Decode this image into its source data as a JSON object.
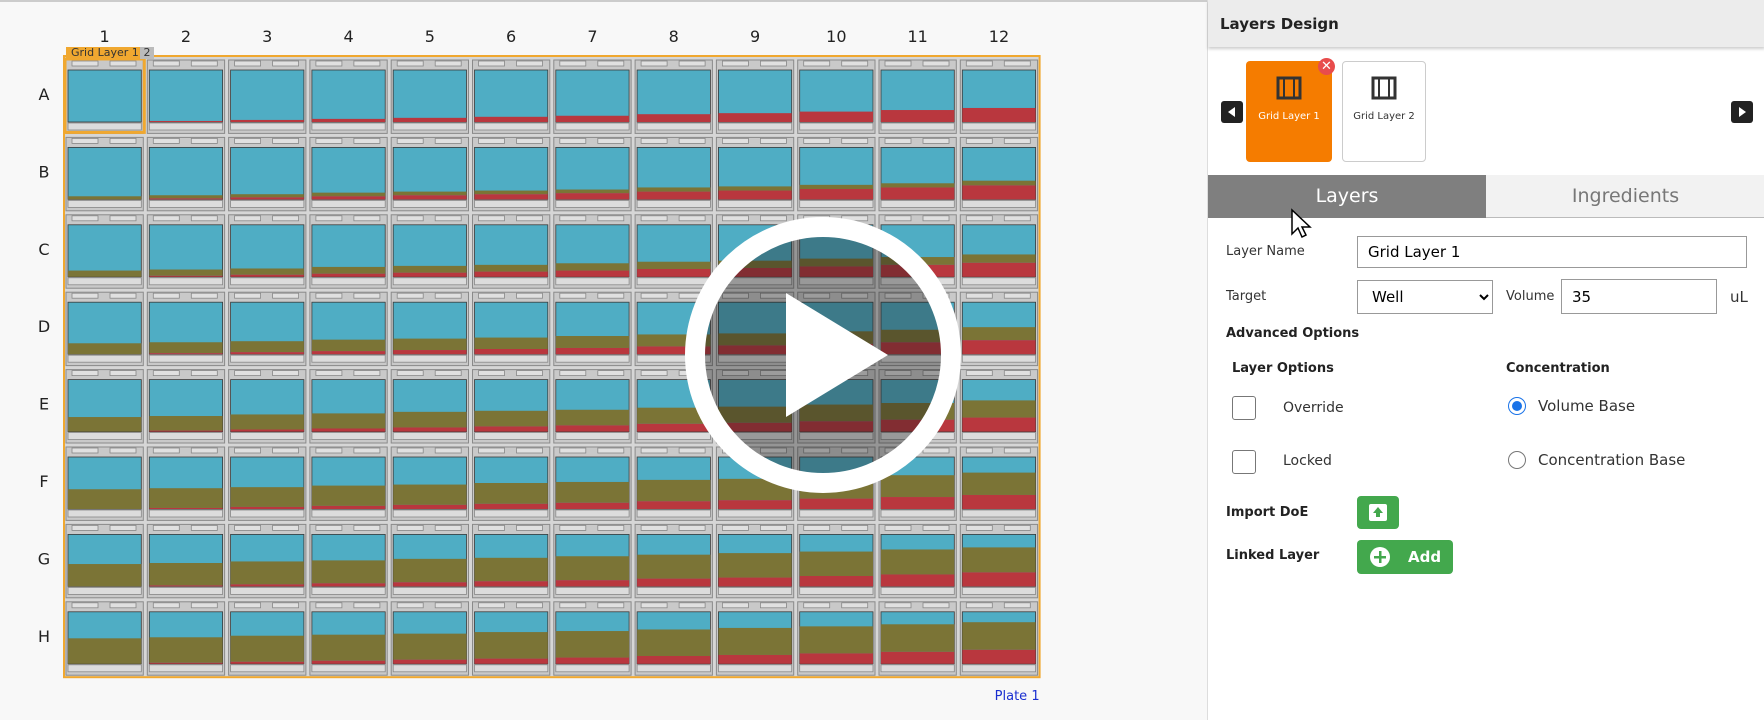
{
  "plate": {
    "columns": [
      "1",
      "2",
      "3",
      "4",
      "5",
      "6",
      "7",
      "8",
      "9",
      "10",
      "11",
      "12"
    ],
    "rows": [
      "A",
      "B",
      "C",
      "D",
      "E",
      "F",
      "G",
      "H"
    ],
    "layer_tabs": [
      "Grid Layer 1",
      "2"
    ],
    "label": "Plate 1",
    "wells": {
      "red": [
        [
          0,
          2,
          4,
          6,
          8,
          10,
          12,
          15,
          17,
          20,
          23,
          27
        ],
        [
          0,
          2,
          4,
          6,
          8,
          10,
          12,
          15,
          17,
          20,
          23,
          27
        ],
        [
          0,
          2,
          4,
          6,
          8,
          10,
          12,
          15,
          17,
          20,
          23,
          27
        ],
        [
          0,
          2,
          4,
          6,
          8,
          10,
          12,
          15,
          17,
          20,
          23,
          27
        ],
        [
          0,
          2,
          4,
          6,
          8,
          10,
          12,
          15,
          17,
          20,
          23,
          27
        ],
        [
          0,
          2,
          4,
          6,
          8,
          10,
          12,
          15,
          17,
          20,
          23,
          27
        ],
        [
          0,
          2,
          4,
          6,
          8,
          10,
          12,
          15,
          17,
          20,
          23,
          27
        ],
        [
          0,
          2,
          4,
          6,
          8,
          10,
          12,
          15,
          17,
          20,
          23,
          27
        ]
      ],
      "olive": [
        [
          0,
          0,
          0,
          0,
          0,
          0,
          0,
          0,
          0,
          0,
          0,
          0
        ],
        [
          6,
          6,
          6,
          7,
          7,
          7,
          7,
          8,
          8,
          8,
          8,
          9
        ],
        [
          12,
          12,
          12,
          13,
          13,
          13,
          14,
          14,
          14,
          15,
          15,
          16
        ],
        [
          21,
          21,
          21,
          22,
          22,
          22,
          23,
          23,
          23,
          24,
          24,
          25
        ],
        [
          28,
          28,
          29,
          29,
          30,
          30,
          30,
          31,
          31,
          32,
          32,
          33
        ],
        [
          38,
          38,
          38,
          39,
          39,
          40,
          40,
          41,
          41,
          42,
          42,
          43
        ],
        [
          43,
          43,
          44,
          44,
          45,
          45,
          46,
          46,
          47,
          47,
          48,
          48
        ],
        [
          49,
          49,
          50,
          50,
          50,
          51,
          51,
          51,
          52,
          52,
          53,
          53
        ]
      ]
    }
  },
  "panel": {
    "title": "Layers Design",
    "layers": [
      "Grid Layer 1",
      "Grid Layer 2"
    ],
    "tabs": [
      "Layers",
      "Ingredients"
    ],
    "form": {
      "layer_name_label": "Layer Name",
      "layer_name_value": "Grid Layer 1",
      "target_label": "Target",
      "target_value": "Well",
      "volume_label": "Volume",
      "volume_value": "35",
      "volume_unit": "uL",
      "advanced": "Advanced Options",
      "layer_options": "Layer Options",
      "concentration": "Concentration",
      "override": "Override",
      "locked": "Locked",
      "volume_base": "Volume Base",
      "concentration_base": "Concentration Base",
      "import_doe": "Import DoE",
      "linked_layer": "Linked Layer",
      "add": "Add"
    }
  }
}
